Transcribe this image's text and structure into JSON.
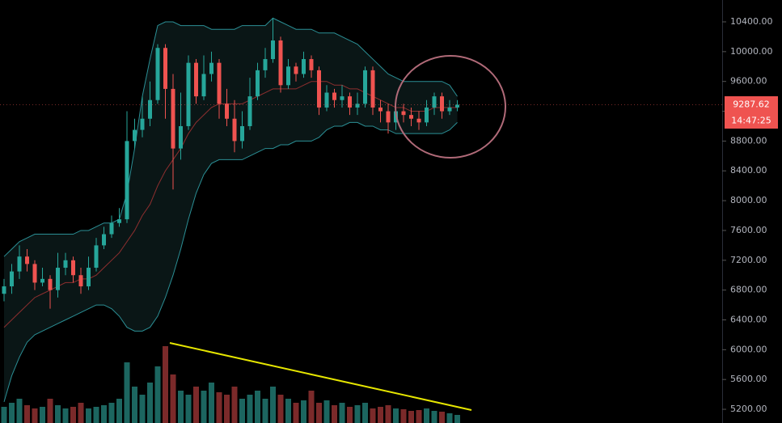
{
  "chart_data": {
    "type": "candlestick",
    "open": [
      6750,
      6850,
      7050,
      7250,
      7150,
      6900,
      6950,
      6800,
      7100,
      7200,
      7000,
      6850,
      7100,
      7400,
      7550,
      7700,
      7750,
      8800,
      8950,
      9100,
      9350,
      10050,
      9500,
      8700,
      9000,
      9850,
      9400,
      9700,
      9850,
      9300,
      9100,
      8800,
      9000,
      9400,
      9750,
      9900,
      10150,
      9550,
      9800,
      9700,
      9900,
      9750,
      9250,
      9450,
      9350,
      9400,
      9250,
      9300,
      9750,
      9250,
      9200,
      9050,
      9200,
      9150,
      9100,
      9050,
      9250,
      9400,
      9200,
      9250
    ],
    "high": [
      6950,
      7150,
      7400,
      7350,
      7200,
      7100,
      7000,
      7300,
      7300,
      7250,
      7100,
      7250,
      7500,
      7650,
      7800,
      7900,
      9200,
      9100,
      9400,
      9600,
      10100,
      10100,
      9700,
      9450,
      9950,
      9900,
      9950,
      10000,
      9900,
      9500,
      9350,
      9200,
      9650,
      9850,
      10050,
      10450,
      10200,
      9900,
      9850,
      10000,
      9950,
      9800,
      9550,
      9500,
      9550,
      9450,
      9450,
      9800,
      9800,
      9350,
      9300,
      9300,
      9300,
      9250,
      9200,
      9350,
      9450,
      9450,
      9350,
      9350
    ],
    "low": [
      6650,
      6750,
      6950,
      7050,
      6800,
      6850,
      6550,
      6700,
      7000,
      6900,
      6750,
      6800,
      7050,
      7350,
      7500,
      7650,
      7700,
      8700,
      8850,
      9000,
      9300,
      9100,
      8150,
      8550,
      8950,
      9300,
      9350,
      9600,
      9100,
      9000,
      8650,
      8700,
      8950,
      9350,
      9650,
      9850,
      9450,
      9500,
      9600,
      9650,
      9650,
      9150,
      9200,
      9250,
      9250,
      9150,
      9150,
      9250,
      9150,
      9050,
      8900,
      8950,
      9050,
      9000,
      8950,
      9000,
      9150,
      9100,
      9150,
      9200
    ],
    "close": [
      6850,
      7050,
      7250,
      7150,
      6900,
      6950,
      6800,
      7100,
      7200,
      7000,
      6850,
      7100,
      7400,
      7550,
      7700,
      7750,
      8800,
      8950,
      9100,
      9350,
      10050,
      9500,
      8700,
      9000,
      9850,
      9400,
      9700,
      9850,
      9300,
      9100,
      8800,
      9000,
      9400,
      9750,
      9900,
      10150,
      9550,
      9800,
      9700,
      9900,
      9750,
      9250,
      9450,
      9350,
      9400,
      9250,
      9300,
      9750,
      9250,
      9200,
      9050,
      9200,
      9150,
      9100,
      9050,
      9250,
      9400,
      9200,
      9250,
      9287.62
    ],
    "volume": [
      20,
      25,
      30,
      22,
      18,
      20,
      30,
      22,
      18,
      20,
      25,
      18,
      20,
      22,
      25,
      30,
      75,
      45,
      35,
      50,
      70,
      95,
      60,
      40,
      35,
      45,
      40,
      50,
      38,
      35,
      45,
      30,
      35,
      40,
      30,
      45,
      35,
      30,
      25,
      28,
      40,
      25,
      28,
      22,
      25,
      20,
      22,
      25,
      18,
      20,
      22,
      18,
      17,
      15,
      16,
      18,
      15,
      14,
      12,
      10
    ],
    "bands": [
      {
        "color": "#2b8f95",
        "values": [
          7250,
          7350,
          7450,
          7500,
          7550,
          7550,
          7550,
          7550,
          7550,
          7550,
          7600,
          7600,
          7650,
          7700,
          7700,
          7750,
          8100,
          8700,
          9400,
          9900,
          10350,
          10400,
          10400,
          10350,
          10350,
          10350,
          10350,
          10300,
          10300,
          10300,
          10300,
          10350,
          10350,
          10350,
          10350,
          10450,
          10400,
          10350,
          10300,
          10300,
          10300,
          10250,
          10250,
          10250,
          10200,
          10150,
          10100,
          10000,
          9900,
          9800,
          9700,
          9650,
          9600,
          9600,
          9600,
          9600,
          9600,
          9600,
          9550,
          9400
        ]
      },
      {
        "color": "#8e2f2f",
        "values": [
          6300,
          6400,
          6500,
          6600,
          6700,
          6750,
          6800,
          6850,
          6900,
          6900,
          6950,
          6950,
          7000,
          7100,
          7200,
          7300,
          7450,
          7600,
          7800,
          7950,
          8200,
          8400,
          8550,
          8700,
          8900,
          9050,
          9150,
          9250,
          9300,
          9300,
          9300,
          9300,
          9350,
          9400,
          9450,
          9500,
          9500,
          9500,
          9500,
          9550,
          9600,
          9600,
          9600,
          9550,
          9550,
          9500,
          9500,
          9450,
          9400,
          9350,
          9300,
          9250,
          9250,
          9200,
          9200,
          9200,
          9250,
          9250,
          9250,
          9250
        ]
      },
      {
        "color": "#2b8f95",
        "values": [
          5300,
          5650,
          5900,
          6100,
          6200,
          6250,
          6300,
          6350,
          6400,
          6450,
          6500,
          6550,
          6600,
          6600,
          6550,
          6450,
          6300,
          6250,
          6250,
          6300,
          6450,
          6700,
          7000,
          7350,
          7750,
          8100,
          8350,
          8500,
          8550,
          8550,
          8550,
          8550,
          8600,
          8650,
          8700,
          8700,
          8750,
          8750,
          8800,
          8800,
          8800,
          8850,
          8950,
          9000,
          9000,
          9050,
          9050,
          9000,
          9000,
          8950,
          8950,
          8900,
          8900,
          8900,
          8900,
          8900,
          8900,
          8900,
          8950,
          9050
        ]
      }
    ],
    "up_color": "#26a69a",
    "down_color": "#ef5350",
    "ylim": [
      5016,
      10693
    ],
    "yticks": [
      {
        "value": 5200,
        "label": "5200.00"
      },
      {
        "value": 5600,
        "label": "5600.00"
      },
      {
        "value": 6000,
        "label": "6000.00"
      },
      {
        "value": 6400,
        "label": "6400.00"
      },
      {
        "value": 6800,
        "label": "6800.00"
      },
      {
        "value": 7200,
        "label": "7200.00"
      },
      {
        "value": 7600,
        "label": "7600.00"
      },
      {
        "value": 8000,
        "label": "8000.00"
      },
      {
        "value": 8400,
        "label": "8400.00"
      },
      {
        "value": 8800,
        "label": "8800.00"
      },
      {
        "value": 9200,
        "label": "9200.00"
      },
      {
        "value": 9600,
        "label": "9600.00"
      },
      {
        "value": 10000,
        "label": "10000.00"
      },
      {
        "value": 10400,
        "label": "10400.00"
      }
    ],
    "countdown": "14:47:25"
  }
}
